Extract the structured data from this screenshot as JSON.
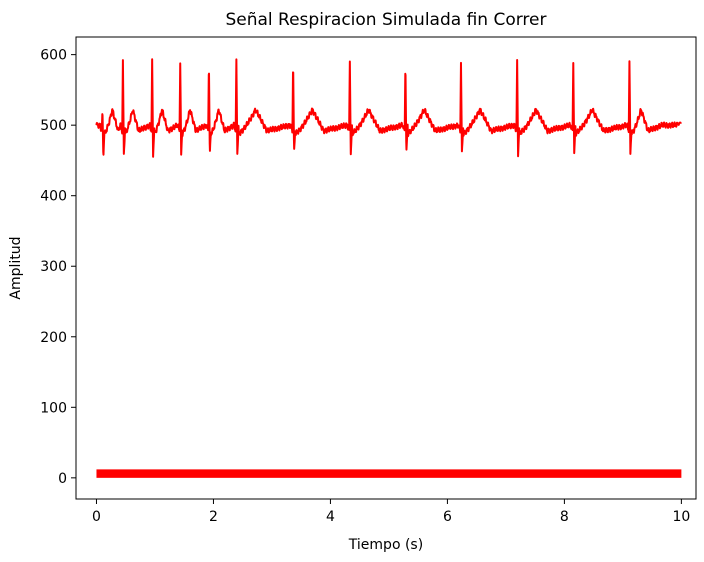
{
  "chart_data": {
    "type": "line",
    "title": "Señal Respiracion Simulada fin Correr",
    "xlabel": "Tiempo (s)",
    "ylabel": "Amplitud",
    "xlim": [
      -0.35,
      10.25
    ],
    "ylim": [
      -30,
      625
    ],
    "xticks": [
      0,
      2,
      4,
      6,
      8,
      10
    ],
    "yticks": [
      0,
      100,
      200,
      300,
      400,
      500,
      600
    ],
    "grid": false,
    "line_color": "#ff0000",
    "series": [
      {
        "kind": "ecg",
        "baseline": 500,
        "x_start": 0.0,
        "x_end": 10.0,
        "beats": [
          {
            "t": 0.09,
            "peak": 518,
            "trough": 457
          },
          {
            "t": 0.44,
            "peak": 590,
            "trough": 457
          },
          {
            "t": 0.94,
            "peak": 590,
            "trough": 457
          },
          {
            "t": 1.42,
            "peak": 590,
            "trough": 457
          },
          {
            "t": 1.91,
            "peak": 590,
            "trough": 457
          },
          {
            "t": 2.38,
            "peak": 590,
            "trough": 460
          },
          {
            "t": 3.35,
            "peak": 592,
            "trough": 459
          },
          {
            "t": 4.32,
            "peak": 590,
            "trough": 459
          },
          {
            "t": 5.27,
            "peak": 590,
            "trough": 459
          },
          {
            "t": 6.22,
            "peak": 590,
            "trough": 459
          },
          {
            "t": 7.18,
            "peak": 590,
            "trough": 459
          },
          {
            "t": 8.14,
            "peak": 590,
            "trough": 459
          },
          {
            "t": 9.1,
            "peak": 590,
            "trough": 459
          }
        ],
        "end_value": 504
      },
      {
        "kind": "band",
        "x_start": 0.0,
        "x_end": 10.0,
        "y_low": 0,
        "y_high": 12
      }
    ]
  }
}
